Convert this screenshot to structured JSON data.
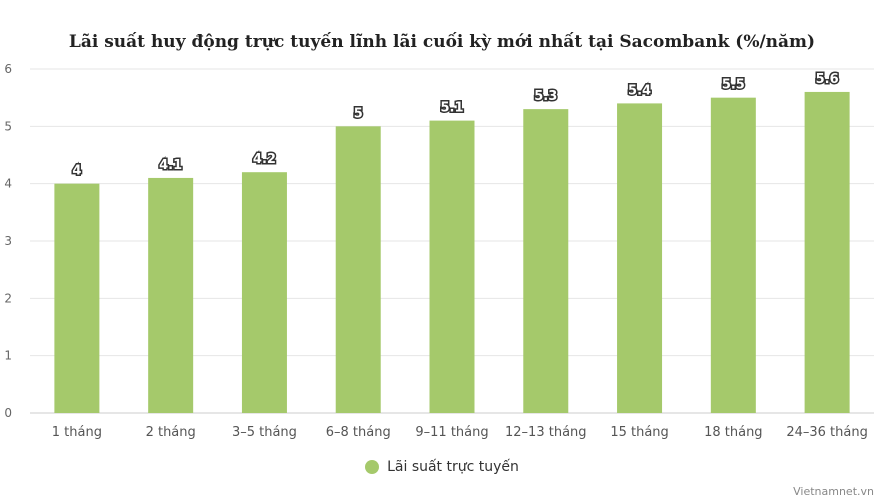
{
  "title": "Lãi suất huy động trực tuyến lĩnh lãi cuối kỳ mới nhất tại Sacombank (%/năm)",
  "credit": "Vietnamnet.vn",
  "colors": {
    "bar": "#a5c96b",
    "grid": "#e6e6e6",
    "axis": "#cccccc",
    "label_stroke": "#333333"
  },
  "chart_data": {
    "type": "bar",
    "categories": [
      "1 tháng",
      "2 tháng",
      "3–5 tháng",
      "6–8 tháng",
      "9–11 tháng",
      "12–13 tháng",
      "15 tháng",
      "18 tháng",
      "24–36 tháng"
    ],
    "series": [
      {
        "name": "Lãi suất trực tuyến",
        "values": [
          4,
          4.1,
          4.2,
          5,
          5.1,
          5.3,
          5.4,
          5.5,
          5.6
        ]
      }
    ],
    "ylim": [
      0,
      6
    ],
    "yticks": [
      0,
      1,
      2,
      3,
      4,
      5,
      6
    ],
    "grid": true,
    "legend": "bottom-center"
  }
}
